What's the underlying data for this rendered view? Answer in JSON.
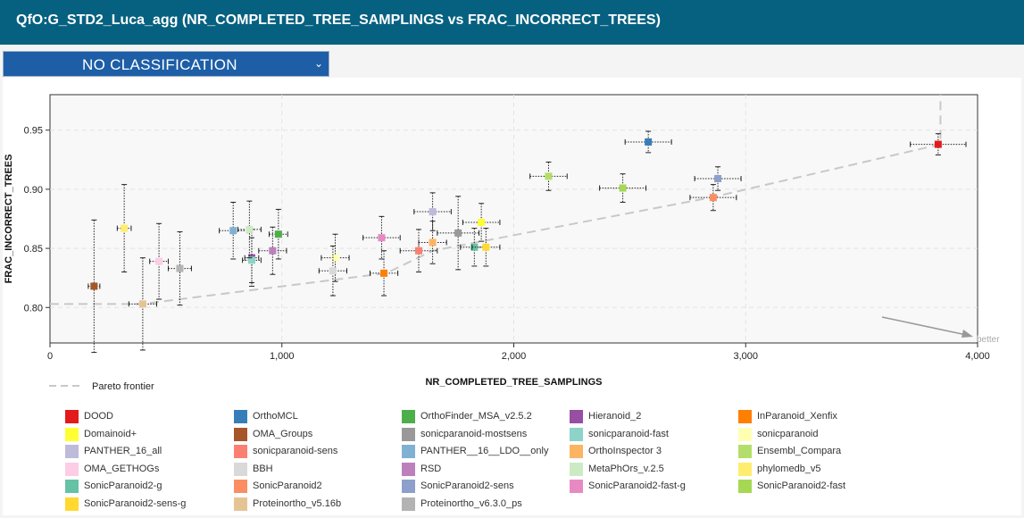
{
  "header": {
    "title": "QfO:G_STD2_Luca_agg (NR_COMPLETED_TREE_SAMPLINGS vs FRAC_INCORRECT_TREES)"
  },
  "classification": {
    "selected": "NO CLASSIFICATION",
    "icon": "chevron-down-icon"
  },
  "chart_data": {
    "type": "scatter",
    "xlabel": "NR_COMPLETED_TREE_SAMPLINGS",
    "ylabel": "FRAC_INCORRECT_TREES",
    "xlim": [
      0,
      4000
    ],
    "ylim": [
      0.77,
      0.98
    ],
    "xticks": [
      "0",
      "1,000",
      "2,000",
      "3,000",
      "4,000"
    ],
    "yticks": [
      "0.80",
      "0.85",
      "0.90",
      "0.95"
    ],
    "corner_label": "better",
    "grid": true,
    "pareto_label": "Pareto frontier",
    "pareto_points": [
      [
        0,
        0.803
      ],
      [
        400,
        0.803
      ],
      [
        1450,
        0.829
      ],
      [
        1650,
        0.848
      ],
      [
        2850,
        0.893
      ],
      [
        3840,
        0.938
      ]
    ],
    "series": [
      {
        "name": "DOOD",
        "color": "#e31a1c",
        "x": 3830,
        "y": 0.938,
        "xerr": 120,
        "yerr": 0.009
      },
      {
        "name": "OrthoMCL",
        "color": "#377eb8",
        "x": 2580,
        "y": 0.94,
        "xerr": 100,
        "yerr": 0.009
      },
      {
        "name": "OrthoFinder_MSA_v2.5.2",
        "color": "#4daf4a",
        "x": 985,
        "y": 0.862,
        "xerr": 40,
        "yerr": 0.021
      },
      {
        "name": "Hieranoid_2",
        "color": "#984ea3",
        "x": 870,
        "y": 0.842,
        "xerr": 30,
        "yerr": 0.024
      },
      {
        "name": "InParanoid_Xenfix",
        "color": "#ff7f00",
        "x": 1440,
        "y": 0.829,
        "xerr": 60,
        "yerr": 0.019
      },
      {
        "name": "Domainoid+",
        "color": "#ffff33",
        "x": 1860,
        "y": 0.872,
        "xerr": 80,
        "yerr": 0.016
      },
      {
        "name": "OMA_Groups",
        "color": "#a65628",
        "x": 190,
        "y": 0.818,
        "xerr": 25,
        "yerr": 0.056
      },
      {
        "name": "sonicparanoid-mostsens",
        "color": "#999999",
        "x": 1760,
        "y": 0.863,
        "xerr": 90,
        "yerr": 0.031
      },
      {
        "name": "sonicparanoid-fast",
        "color": "#8dd3c7",
        "x": 870,
        "y": 0.84,
        "xerr": 40,
        "yerr": 0.019
      },
      {
        "name": "sonicparanoid",
        "color": "#ffffb3",
        "x": 1230,
        "y": 0.842,
        "xerr": 60,
        "yerr": 0.02
      },
      {
        "name": "PANTHER_16_all",
        "color": "#bebada",
        "x": 1650,
        "y": 0.881,
        "xerr": 80,
        "yerr": 0.016
      },
      {
        "name": "sonicparanoid-sens",
        "color": "#fb8072",
        "x": 1590,
        "y": 0.848,
        "xerr": 80,
        "yerr": 0.018
      },
      {
        "name": "PANTHER__16__LDO__only",
        "color": "#80b1d3",
        "x": 790,
        "y": 0.865,
        "xerr": 60,
        "yerr": 0.024
      },
      {
        "name": "OrthoInspector 3",
        "color": "#fdb462",
        "x": 1650,
        "y": 0.855,
        "xerr": 60,
        "yerr": 0.018
      },
      {
        "name": "Ensembl_Compara",
        "color": "#b3de69",
        "x": 2150,
        "y": 0.911,
        "xerr": 80,
        "yerr": 0.012
      },
      {
        "name": "OMA_GETHOGs",
        "color": "#fccde5",
        "x": 470,
        "y": 0.839,
        "xerr": 40,
        "yerr": 0.032
      },
      {
        "name": "BBH",
        "color": "#d9d9d9",
        "x": 1220,
        "y": 0.831,
        "xerr": 60,
        "yerr": 0.021
      },
      {
        "name": "RSD",
        "color": "#bc80bd",
        "x": 960,
        "y": 0.848,
        "xerr": 60,
        "yerr": 0.02
      },
      {
        "name": "MetaPhOrs_v.2.5",
        "color": "#ccebc5",
        "x": 860,
        "y": 0.866,
        "xerr": 50,
        "yerr": 0.024
      },
      {
        "name": "phylomedb_v5",
        "color": "#ffed6f",
        "x": 320,
        "y": 0.867,
        "xerr": 30,
        "yerr": 0.037
      },
      {
        "name": "SonicParanoid2-g",
        "color": "#66c2a5",
        "x": 1830,
        "y": 0.851,
        "xerr": 60,
        "yerr": 0.016
      },
      {
        "name": "SonicParanoid2",
        "color": "#fc8d62",
        "x": 2860,
        "y": 0.893,
        "xerr": 100,
        "yerr": 0.011
      },
      {
        "name": "SonicParanoid2-sens",
        "color": "#8da0cb",
        "x": 2880,
        "y": 0.909,
        "xerr": 100,
        "yerr": 0.01
      },
      {
        "name": "SonicParanoid2-fast-g",
        "color": "#e78ac3",
        "x": 1430,
        "y": 0.859,
        "xerr": 80,
        "yerr": 0.018
      },
      {
        "name": "SonicParanoid2-fast",
        "color": "#a6d854",
        "x": 2470,
        "y": 0.901,
        "xerr": 100,
        "yerr": 0.012
      },
      {
        "name": "SonicParanoid2-sens-g",
        "color": "#ffd92f",
        "x": 1880,
        "y": 0.851,
        "xerr": 60,
        "yerr": 0.016
      },
      {
        "name": "Proteinortho_v5.16b",
        "color": "#e5c494",
        "x": 400,
        "y": 0.803,
        "xerr": 60,
        "yerr": 0.039
      },
      {
        "name": "Proteinortho_v6.3.0_ps",
        "color": "#b3b3b3",
        "x": 560,
        "y": 0.833,
        "xerr": 50,
        "yerr": 0.031
      }
    ]
  }
}
